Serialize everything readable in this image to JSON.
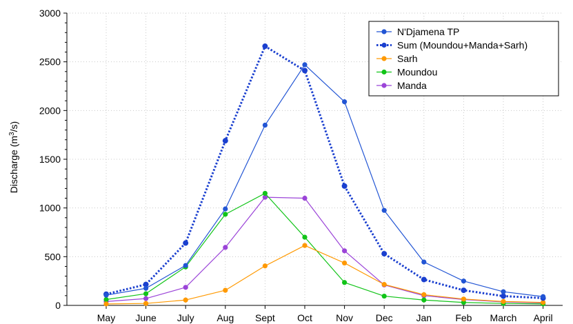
{
  "chart_data": {
    "type": "line",
    "ylabel_main": "Discharge (m",
    "ylabel_sup": "3",
    "ylabel_end": "/s)",
    "categories": [
      "May",
      "June",
      "July",
      "Aug",
      "Sept",
      "Oct",
      "Nov",
      "Dec",
      "Jan",
      "Feb",
      "March",
      "April"
    ],
    "ylim": [
      0,
      3000
    ],
    "yticks": [
      "0",
      "500",
      "1000",
      "1500",
      "2000",
      "2500",
      "3000"
    ],
    "grid": true,
    "legend_position": "top-right",
    "series": [
      {
        "name": "N'Djamena TP",
        "color": "#2255d4",
        "style": "solid",
        "values": [
          105,
          175,
          410,
          990,
          1850,
          2470,
          2090,
          975,
          445,
          250,
          140,
          90
        ]
      },
      {
        "name": "Sum (Moundou+Manda+Sarh)",
        "color": "#1a3fcf",
        "style": "dotted",
        "values": [
          115,
          215,
          640,
          1690,
          2660,
          2410,
          1225,
          530,
          265,
          155,
          95,
          75
        ]
      },
      {
        "name": "Sarh",
        "color": "#ff9900",
        "style": "solid",
        "values": [
          15,
          20,
          55,
          155,
          405,
          615,
          435,
          215,
          110,
          65,
          40,
          30
        ]
      },
      {
        "name": "Moundou",
        "color": "#11c418",
        "style": "solid",
        "values": [
          60,
          120,
          395,
          935,
          1150,
          700,
          235,
          95,
          55,
          30,
          20,
          15
        ]
      },
      {
        "name": "Manda",
        "color": "#9b44d8",
        "style": "solid",
        "values": [
          40,
          70,
          185,
          595,
          1110,
          1100,
          560,
          210,
          100,
          60,
          35,
          25
        ]
      }
    ]
  }
}
